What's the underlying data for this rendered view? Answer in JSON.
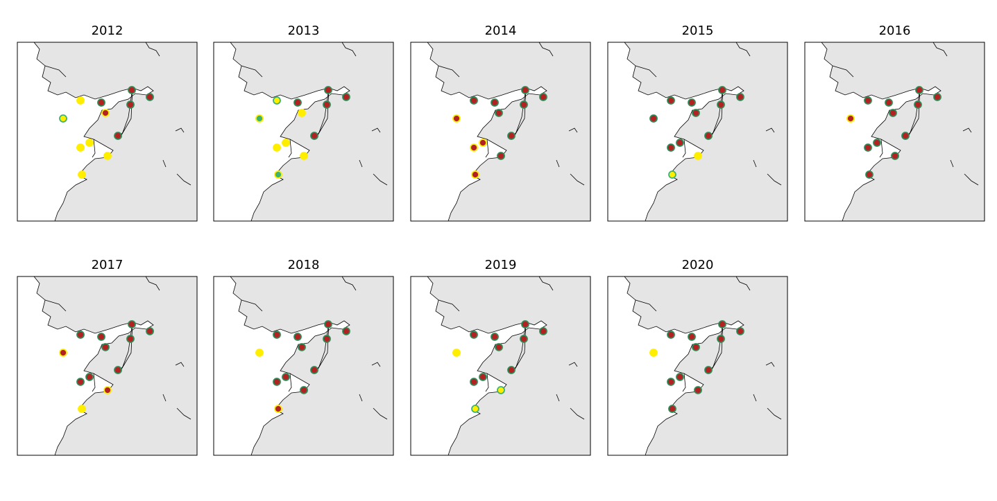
{
  "panels": [
    {
      "title": "2012",
      "sites": [
        [
          "#ffee00",
          "#3cb371"
        ],
        [
          "#ffee00",
          "#ffee00"
        ],
        [
          "#b22222",
          "#2e8b57"
        ],
        [
          "#b22222",
          "#ffee00"
        ],
        [
          "#b22222",
          "#2e8b57"
        ],
        [
          "#b22222",
          "#2e8b57"
        ],
        [
          "#b22222",
          "#2e8b57"
        ],
        [
          "#b22222",
          "#2e8b57"
        ],
        [
          "#ffee00",
          "#ffee00"
        ],
        [
          "#ffee00",
          "#ffee00"
        ],
        [
          "#ffee00",
          "#ffee00"
        ],
        [
          "#ffee00",
          "#ffee00"
        ]
      ]
    },
    {
      "title": "2013",
      "sites": [
        [
          "#3cb371",
          "#ffee00"
        ],
        [
          "#ffee00",
          "#3cb371"
        ],
        [
          "#b22222",
          "#2e8b57"
        ],
        [
          "#ffee00",
          "#ffee00"
        ],
        [
          "#b22222",
          "#2e8b57"
        ],
        [
          "#b22222",
          "#2e8b57"
        ],
        [
          "#b22222",
          "#2e8b57"
        ],
        [
          "#b22222",
          "#2e8b57"
        ],
        [
          "#ffee00",
          "#ffee00"
        ],
        [
          "#ffee00",
          "#ffee00"
        ],
        [
          "#ffee00",
          "#ffee00"
        ],
        [
          "#3cb371",
          "#ffee00"
        ]
      ]
    },
    {
      "title": "2014",
      "sites": [
        [
          "#b22222",
          "#ffee00"
        ],
        [
          "#b22222",
          "#2e8b57"
        ],
        [
          "#b22222",
          "#2e8b57"
        ],
        [
          "#b22222",
          "#2e8b57"
        ],
        [
          "#b22222",
          "#2e8b57"
        ],
        [
          "#b22222",
          "#2e8b57"
        ],
        [
          "#b22222",
          "#2e8b57"
        ],
        [
          "#b22222",
          "#2e8b57"
        ],
        [
          "#b22222",
          "#ffee00"
        ],
        [
          "#b22222",
          "#ffee00"
        ],
        [
          "#b22222",
          "#2e8b57"
        ],
        [
          "#b22222",
          "#ffee00"
        ]
      ]
    },
    {
      "title": "2015",
      "sites": [
        [
          "#b22222",
          "#2e8b57"
        ],
        [
          "#b22222",
          "#2e8b57"
        ],
        [
          "#b22222",
          "#2e8b57"
        ],
        [
          "#b22222",
          "#2e8b57"
        ],
        [
          "#b22222",
          "#2e8b57"
        ],
        [
          "#b22222",
          "#2e8b57"
        ],
        [
          "#b22222",
          "#2e8b57"
        ],
        [
          "#b22222",
          "#2e8b57"
        ],
        [
          "#b22222",
          "#2e8b57"
        ],
        [
          "#b22222",
          "#2e8b57"
        ],
        [
          "#ffee00",
          "#ffee00"
        ],
        [
          "#ffee00",
          "#3cb371"
        ]
      ]
    },
    {
      "title": "2016",
      "sites": [
        [
          "#b22222",
          "#ffee00"
        ],
        [
          "#b22222",
          "#2e8b57"
        ],
        [
          "#b22222",
          "#2e8b57"
        ],
        [
          "#b22222",
          "#2e8b57"
        ],
        [
          "#b22222",
          "#2e8b57"
        ],
        [
          "#b22222",
          "#2e8b57"
        ],
        [
          "#b22222",
          "#2e8b57"
        ],
        [
          "#b22222",
          "#2e8b57"
        ],
        [
          "#b22222",
          "#2e8b57"
        ],
        [
          "#b22222",
          "#2e8b57"
        ],
        [
          "#b22222",
          "#2e8b57"
        ],
        [
          "#b22222",
          "#2e8b57"
        ]
      ]
    },
    {
      "title": "2017",
      "sites": [
        [
          "#b22222",
          "#ffee00"
        ],
        [
          "#b22222",
          "#2e8b57"
        ],
        [
          "#b22222",
          "#2e8b57"
        ],
        [
          "#b22222",
          "#2e8b57"
        ],
        [
          "#b22222",
          "#2e8b57"
        ],
        [
          "#b22222",
          "#2e8b57"
        ],
        [
          "#b22222",
          "#2e8b57"
        ],
        [
          "#b22222",
          "#2e8b57"
        ],
        [
          "#b22222",
          "#2e8b57"
        ],
        [
          "#b22222",
          "#2e8b57"
        ],
        [
          "#b22222",
          "#ffee00"
        ],
        [
          "#ffee00",
          "#ffee00"
        ]
      ]
    },
    {
      "title": "2018",
      "sites": [
        [
          "#ffee00",
          "#ffee00"
        ],
        [
          "#b22222",
          "#2e8b57"
        ],
        [
          "#b22222",
          "#2e8b57"
        ],
        [
          "#b22222",
          "#2e8b57"
        ],
        [
          "#b22222",
          "#2e8b57"
        ],
        [
          "#b22222",
          "#2e8b57"
        ],
        [
          "#b22222",
          "#2e8b57"
        ],
        [
          "#b22222",
          "#2e8b57"
        ],
        [
          "#b22222",
          "#2e8b57"
        ],
        [
          "#b22222",
          "#2e8b57"
        ],
        [
          "#b22222",
          "#2e8b57"
        ],
        [
          "#b22222",
          "#ffee00"
        ]
      ]
    },
    {
      "title": "2019",
      "sites": [
        [
          "#ffee00",
          "#ffee00"
        ],
        [
          "#b22222",
          "#2e8b57"
        ],
        [
          "#b22222",
          "#2e8b57"
        ],
        [
          "#b22222",
          "#2e8b57"
        ],
        [
          "#b22222",
          "#2e8b57"
        ],
        [
          "#b22222",
          "#2e8b57"
        ],
        [
          "#b22222",
          "#2e8b57"
        ],
        [
          "#b22222",
          "#2e8b57"
        ],
        [
          "#b22222",
          "#2e8b57"
        ],
        [
          "#b22222",
          "#2e8b57"
        ],
        [
          "#ffee00",
          "#3cb371"
        ],
        [
          "#ffee00",
          "#3cb371"
        ]
      ]
    },
    {
      "title": "2020",
      "sites": [
        [
          "#ffee00",
          "#ffee00"
        ],
        [
          "#b22222",
          "#2e8b57"
        ],
        [
          "#b22222",
          "#2e8b57"
        ],
        [
          "#b22222",
          "#2e8b57"
        ],
        [
          "#b22222",
          "#2e8b57"
        ],
        [
          "#b22222",
          "#2e8b57"
        ],
        [
          "#b22222",
          "#2e8b57"
        ],
        [
          "#b22222",
          "#2e8b57"
        ],
        [
          "#b22222",
          "#2e8b57"
        ],
        [
          "#b22222",
          "#2e8b57"
        ],
        [
          "#b22222",
          "#2e8b57"
        ],
        [
          "#b22222",
          "#2e8b57"
        ]
      ]
    }
  ]
}
